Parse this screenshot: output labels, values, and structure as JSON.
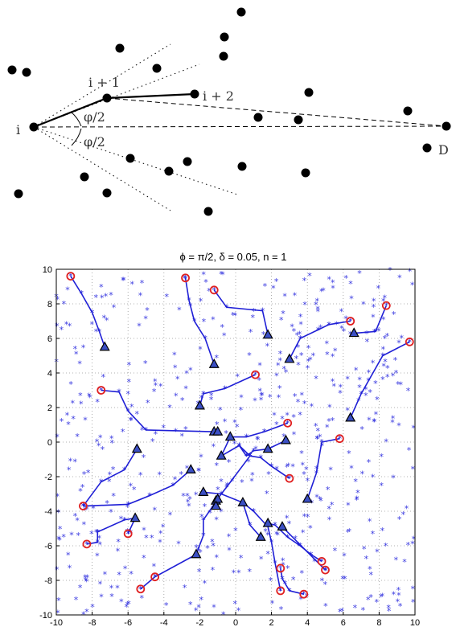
{
  "diagram": {
    "labels": {
      "i": "i",
      "i1": "i + 1",
      "i2": "i + 2",
      "D": "D",
      "phi_upper": "φ/2",
      "phi_lower": "φ/2"
    }
  },
  "chart_data": {
    "type": "scatter",
    "title": "ϕ = π/2, δ = 0.05, n = 1",
    "xlim": [
      -10,
      10
    ],
    "ylim": [
      -10,
      10
    ],
    "x_ticks": [
      -10,
      -8,
      -6,
      -4,
      -2,
      0,
      2,
      4,
      6,
      8,
      10
    ],
    "y_ticks": [
      -10,
      -8,
      -6,
      -4,
      -2,
      0,
      2,
      4,
      6,
      8,
      10
    ],
    "grid": true,
    "colors": {
      "path": "#1f1fd6",
      "nodes": "#3a3ae0",
      "start": "#e02020",
      "end_fill": "#3b4fc4"
    },
    "paths": [
      [
        [
          -9.2,
          9.6
        ],
        [
          -8.6,
          8.6
        ],
        [
          -8.0,
          7.5
        ],
        [
          -7.6,
          6.4
        ],
        [
          -7.3,
          5.5
        ]
      ],
      [
        [
          -2.8,
          9.5
        ],
        [
          -2.6,
          8.2
        ],
        [
          -2.3,
          7.0
        ],
        [
          -1.7,
          6.0
        ],
        [
          -1.2,
          4.5
        ]
      ],
      [
        [
          -1.2,
          8.8
        ],
        [
          -0.5,
          7.8
        ],
        [
          1.5,
          7.6
        ],
        [
          1.8,
          6.2
        ]
      ],
      [
        [
          6.4,
          7.0
        ],
        [
          5.2,
          6.8
        ],
        [
          4.6,
          6.5
        ],
        [
          3.6,
          6.0
        ],
        [
          3.0,
          4.8
        ]
      ],
      [
        [
          8.4,
          7.9
        ],
        [
          7.8,
          6.4
        ],
        [
          6.6,
          6.3
        ]
      ],
      [
        [
          9.7,
          5.8
        ],
        [
          8.2,
          5.0
        ],
        [
          7.0,
          2.8
        ],
        [
          6.4,
          1.4
        ]
      ],
      [
        [
          1.1,
          3.9
        ],
        [
          -0.6,
          3.1
        ],
        [
          -1.8,
          2.8
        ],
        [
          -2.0,
          2.1
        ]
      ],
      [
        [
          -7.5,
          3.0
        ],
        [
          -6.5,
          2.9
        ],
        [
          -6.0,
          1.8
        ],
        [
          -5.0,
          0.7
        ],
        [
          -1.2,
          0.6
        ]
      ],
      [
        [
          2.9,
          1.1
        ],
        [
          1.6,
          0.6
        ],
        [
          0.6,
          0.3
        ],
        [
          -0.3,
          0.3
        ],
        [
          -0.8,
          -0.8
        ]
      ],
      [
        [
          5.8,
          0.2
        ],
        [
          4.8,
          0.0
        ],
        [
          4.5,
          -1.8
        ],
        [
          4.0,
          -3.3
        ]
      ],
      [
        [
          -8.5,
          -3.7
        ],
        [
          -7.5,
          -2.3
        ],
        [
          -6.2,
          -1.6
        ],
        [
          -5.5,
          -0.4
        ]
      ],
      [
        [
          -8.3,
          -5.9
        ],
        [
          -7.7,
          -5.8
        ],
        [
          -7.7,
          -5.2
        ],
        [
          -6.2,
          -4.5
        ],
        [
          -5.6,
          -4.4
        ]
      ],
      [
        [
          -6.0,
          -5.3
        ],
        [
          -5.6,
          -4.4
        ]
      ],
      [
        [
          -8.5,
          -3.7
        ],
        [
          -6.0,
          -3.6
        ],
        [
          -4.8,
          -3.1
        ],
        [
          -3.5,
          -2.5
        ],
        [
          -2.5,
          -1.6
        ]
      ],
      [
        [
          3.0,
          -2.1
        ],
        [
          2.0,
          -1.4
        ],
        [
          1.4,
          -0.9
        ],
        [
          0.8,
          -0.8
        ],
        [
          0.2,
          -0.2
        ],
        [
          -0.8,
          -0.8
        ]
      ],
      [
        [
          2.8,
          0.1
        ],
        [
          1.8,
          -0.4
        ],
        [
          1.0,
          -0.5
        ],
        [
          0.6,
          -0.8
        ],
        [
          0.2,
          -0.2
        ]
      ],
      [
        [
          0.8,
          -0.8
        ],
        [
          -0.5,
          -2.6
        ],
        [
          -1.1,
          -3.4
        ]
      ],
      [
        [
          -5.3,
          -8.5
        ],
        [
          -4.5,
          -7.8
        ],
        [
          -2.2,
          -6.5
        ]
      ],
      [
        [
          -2.2,
          -6.5
        ],
        [
          -1.8,
          -5.4
        ],
        [
          -1.8,
          -4.5
        ],
        [
          -1.0,
          -3.3
        ]
      ],
      [
        [
          3.8,
          -8.8
        ],
        [
          3.0,
          -8.6
        ],
        [
          2.6,
          -7.9
        ],
        [
          2.5,
          -7.3
        ]
      ],
      [
        [
          2.5,
          -8.6
        ],
        [
          2.2,
          -7.0
        ],
        [
          2.0,
          -5.8
        ],
        [
          1.8,
          -4.9
        ],
        [
          1.0,
          -4.0
        ],
        [
          0.4,
          -3.5
        ]
      ],
      [
        [
          0.4,
          -3.5
        ],
        [
          -0.8,
          -3.0
        ],
        [
          -1.8,
          -2.9
        ]
      ],
      [
        [
          4.8,
          -6.9
        ],
        [
          4.2,
          -6.5
        ],
        [
          3.6,
          -6.0
        ],
        [
          2.9,
          -5.5
        ],
        [
          2.2,
          -4.8
        ],
        [
          1.8,
          -4.7
        ]
      ],
      [
        [
          5.0,
          -7.4
        ],
        [
          2.6,
          -4.9
        ]
      ],
      [
        [
          1.4,
          -5.5
        ],
        [
          0.8,
          -4.8
        ],
        [
          0.4,
          -3.5
        ]
      ]
    ],
    "start_points": [
      [
        -9.2,
        9.6
      ],
      [
        -2.8,
        9.5
      ],
      [
        -1.2,
        8.8
      ],
      [
        6.4,
        7.0
      ],
      [
        8.4,
        7.9
      ],
      [
        9.7,
        5.8
      ],
      [
        1.1,
        3.9
      ],
      [
        -7.5,
        3.0
      ],
      [
        2.9,
        1.1
      ],
      [
        5.8,
        0.2
      ],
      [
        -8.5,
        -3.7
      ],
      [
        -8.3,
        -5.9
      ],
      [
        -6.0,
        -5.3
      ],
      [
        3.0,
        -2.1
      ],
      [
        -5.3,
        -8.5
      ],
      [
        -4.5,
        -7.8
      ],
      [
        2.5,
        -7.3
      ],
      [
        2.5,
        -8.6
      ],
      [
        3.8,
        -8.8
      ],
      [
        4.8,
        -6.9
      ],
      [
        5.0,
        -7.4
      ]
    ],
    "end_points": [
      [
        -7.3,
        5.5
      ],
      [
        -1.2,
        4.5
      ],
      [
        1.8,
        6.2
      ],
      [
        3.0,
        4.8
      ],
      [
        6.6,
        6.3
      ],
      [
        6.4,
        1.4
      ],
      [
        -2.0,
        2.1
      ],
      [
        -1.2,
        0.6
      ],
      [
        -1.0,
        0.6
      ],
      [
        -0.3,
        0.3
      ],
      [
        -0.8,
        -0.8
      ],
      [
        1.8,
        -0.4
      ],
      [
        2.8,
        0.1
      ],
      [
        4.0,
        -3.3
      ],
      [
        -5.5,
        -0.4
      ],
      [
        -2.5,
        -1.6
      ],
      [
        -5.6,
        -4.4
      ],
      [
        -1.8,
        -2.9
      ],
      [
        -1.1,
        -3.4
      ],
      [
        -1.0,
        -3.3
      ],
      [
        -1.1,
        -3.7
      ],
      [
        0.4,
        -3.5
      ],
      [
        -2.2,
        -6.5
      ],
      [
        1.4,
        -5.5
      ],
      [
        1.8,
        -4.7
      ],
      [
        2.6,
        -4.9
      ]
    ],
    "scatter_count": 520
  }
}
